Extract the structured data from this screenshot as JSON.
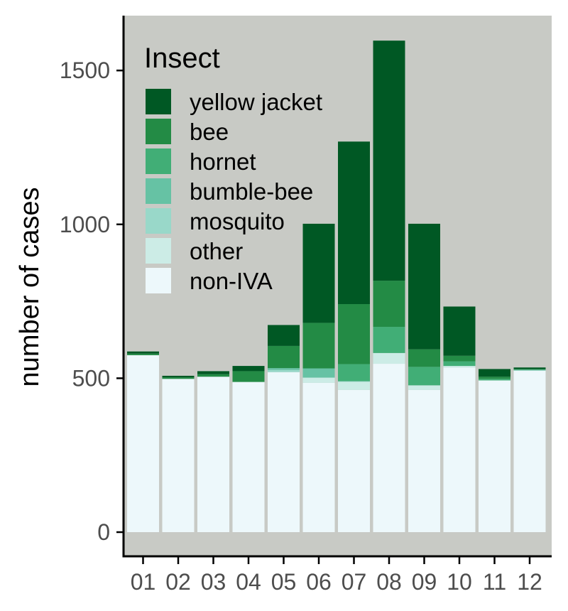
{
  "chart_data": {
    "type": "bar",
    "stacked": true,
    "title": "",
    "xlabel": "",
    "ylabel": "number of cases",
    "ylim": [
      0,
      1670
    ],
    "yticks": [
      0,
      500,
      1000,
      1500
    ],
    "grid": false,
    "legend_title": "Insect",
    "legend_position": "top-left",
    "categories": [
      "01",
      "02",
      "03",
      "04",
      "05",
      "06",
      "07",
      "08",
      "09",
      "10",
      "11",
      "12"
    ],
    "series": [
      {
        "name": "non-IVA",
        "color": "#edf8fb",
        "values": [
          575,
          498,
          505,
          488,
          520,
          485,
          462,
          547,
          462,
          535,
          493,
          525
        ]
      },
      {
        "name": "other",
        "color": "#ccece6",
        "values": [
          0,
          0,
          0,
          0,
          0,
          17,
          27,
          35,
          15,
          5,
          0,
          0
        ]
      },
      {
        "name": "mosquito",
        "color": "#99d8c9",
        "values": [
          0,
          0,
          0,
          0,
          7,
          0,
          0,
          0,
          0,
          0,
          0,
          0
        ]
      },
      {
        "name": "bumble-bee",
        "color": "#66c2a4",
        "values": [
          0,
          0,
          0,
          0,
          6,
          30,
          2,
          0,
          0,
          0,
          0,
          3
        ]
      },
      {
        "name": "hornet",
        "color": "#41ae76",
        "values": [
          0,
          0,
          0,
          0,
          0,
          0,
          55,
          85,
          60,
          15,
          5,
          0
        ]
      },
      {
        "name": "bee",
        "color": "#238b45",
        "values": [
          5,
          5,
          8,
          35,
          72,
          148,
          195,
          150,
          57,
          18,
          7,
          2
        ]
      },
      {
        "name": "yellow jacket",
        "color": "#005824",
        "values": [
          7,
          5,
          10,
          17,
          68,
          322,
          528,
          780,
          408,
          160,
          25,
          5
        ]
      }
    ],
    "colors": {
      "panel_background": "#c8cac5",
      "axis_line": "#000000",
      "tick_text": "#4d4d4d"
    }
  }
}
